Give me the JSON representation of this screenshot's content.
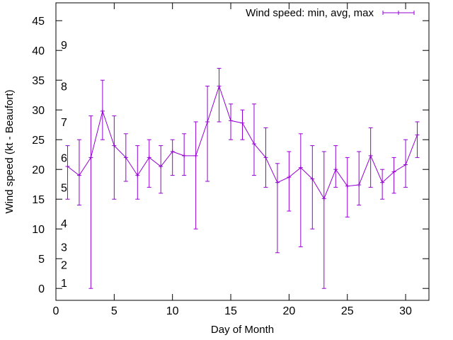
{
  "chart_data": {
    "type": "line",
    "xlabel": "Day of Month",
    "ylabel": "Wind speed (kt - Beaufort)",
    "xlim": [
      0,
      32
    ],
    "ylim": [
      -2,
      48
    ],
    "x_ticks": [
      "0",
      "5",
      "10",
      "15",
      "20",
      "25",
      "30"
    ],
    "y_ticks": [
      "0",
      "5",
      "10",
      "15",
      "20",
      "25",
      "30",
      "35",
      "40",
      "45"
    ],
    "grid": false,
    "legend_position": "top-right",
    "beaufort_labels": [
      {
        "label": "1",
        "y": 1
      },
      {
        "label": "2",
        "y": 4
      },
      {
        "label": "3",
        "y": 7
      },
      {
        "label": "4",
        "y": 11
      },
      {
        "label": "5",
        "y": 17
      },
      {
        "label": "6",
        "y": 22
      },
      {
        "label": "7",
        "y": 28
      },
      {
        "label": "8",
        "y": 34
      },
      {
        "label": "9",
        "y": 41
      }
    ],
    "series": [
      {
        "name": "Wind speed: min, avg, max",
        "color": "#9400d3",
        "x": [
          1,
          2,
          3,
          4,
          5,
          6,
          7,
          8,
          9,
          10,
          11,
          12,
          13,
          14,
          15,
          16,
          17,
          18,
          19,
          20,
          21,
          22,
          23,
          24,
          25,
          26,
          27,
          28,
          29,
          30,
          31
        ],
        "avg": [
          20.5,
          19,
          22,
          29.8,
          24,
          22,
          19,
          22,
          20.5,
          23,
          22.3,
          22.3,
          28,
          34,
          28.2,
          27.8,
          24.3,
          22,
          17.8,
          18.7,
          20.3,
          18.4,
          15.1,
          20,
          17.2,
          17.4,
          22.3,
          17.8,
          19.6,
          20.8,
          25.8
        ],
        "min": [
          15,
          14,
          0,
          25,
          15,
          18,
          15,
          17,
          16,
          19,
          19,
          10,
          18,
          28,
          25,
          25,
          19,
          17,
          6,
          13,
          7,
          10,
          0,
          17,
          12,
          14,
          17,
          15,
          16,
          17,
          22
        ],
        "max": [
          24,
          25,
          29,
          35,
          29,
          26,
          24,
          25,
          24,
          25,
          26,
          28,
          34,
          37,
          31,
          30,
          31,
          27,
          21,
          23,
          26,
          24,
          23,
          24,
          22,
          23,
          27,
          20,
          22,
          25,
          28
        ]
      }
    ]
  }
}
